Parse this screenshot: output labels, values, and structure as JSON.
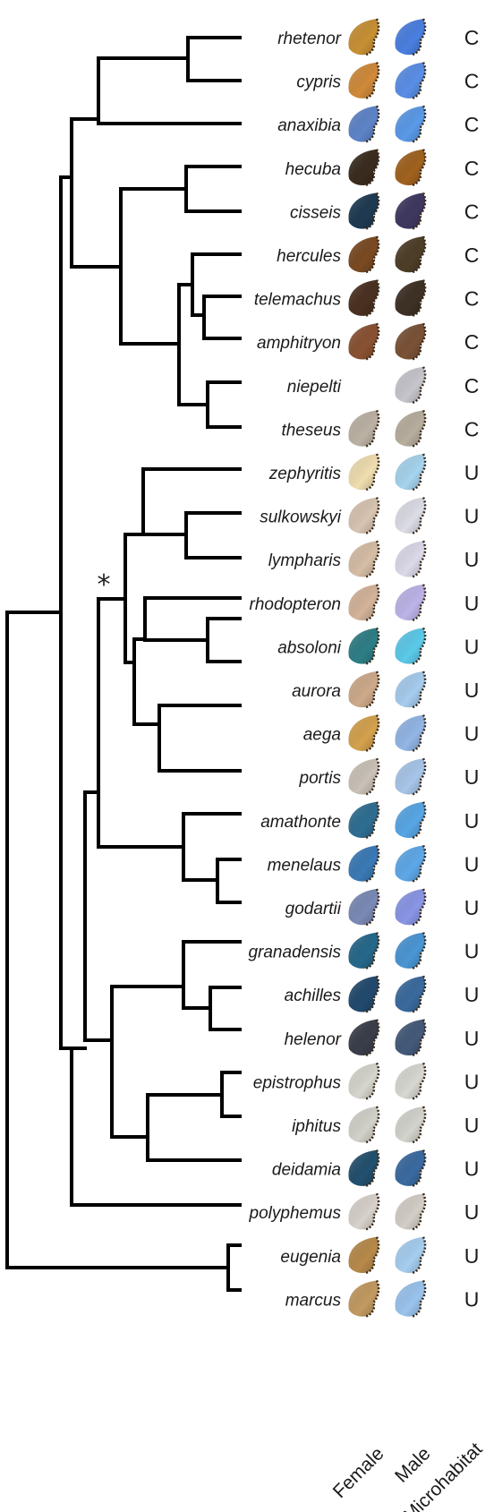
{
  "columns": {
    "female": "Female",
    "male": "Male",
    "microhabitat": "Microhabitat"
  },
  "node_marker": "*",
  "species": [
    {
      "name": "rhetenor",
      "habitat": "C",
      "female_color": "#c89034",
      "male_color": "#4a7fe0"
    },
    {
      "name": "cypris",
      "habitat": "C",
      "female_color": "#d08a3a",
      "male_color": "#5a8ee6"
    },
    {
      "name": "anaxibia",
      "habitat": "C",
      "female_color": "#5e84c8",
      "male_color": "#5a9ae8"
    },
    {
      "name": "hecuba",
      "habitat": "C",
      "female_color": "#3a2c1e",
      "male_color": "#a0621e"
    },
    {
      "name": "cisseis",
      "habitat": "C",
      "female_color": "#1e3a52",
      "male_color": "#3e3860"
    },
    {
      "name": "hercules",
      "habitat": "C",
      "female_color": "#7a4a22",
      "male_color": "#4e3e28"
    },
    {
      "name": "telemachus",
      "habitat": "C",
      "female_color": "#4a3020",
      "male_color": "#3e3024"
    },
    {
      "name": "amphitryon",
      "habitat": "C",
      "female_color": "#8a5232",
      "male_color": "#7a5236"
    },
    {
      "name": "niepelti",
      "habitat": "C",
      "female_color": null,
      "male_color": "#c6c6cc"
    },
    {
      "name": "theseus",
      "habitat": "C",
      "female_color": "#bcb2a4",
      "male_color": "#b8ae9e"
    },
    {
      "name": "zephyritis",
      "habitat": "U",
      "female_color": "#f0deb0",
      "male_color": "#a6d4ee"
    },
    {
      "name": "sulkowskyi",
      "habitat": "U",
      "female_color": "#d8c4b2",
      "male_color": "#dcdde6"
    },
    {
      "name": "lympharis",
      "habitat": "U",
      "female_color": "#d6bea6",
      "male_color": "#dcdaea"
    },
    {
      "name": "rhodopteron",
      "habitat": "U",
      "female_color": "#d4b49a",
      "male_color": "#bcb4e8"
    },
    {
      "name": "absoloni",
      "habitat": "U",
      "female_color": "#2e7e86",
      "male_color": "#5ccaea"
    },
    {
      "name": "aurora",
      "habitat": "U",
      "female_color": "#ceaa8a",
      "male_color": "#a6ccee"
    },
    {
      "name": "aega",
      "habitat": "U",
      "female_color": "#d4a24e",
      "male_color": "#92b6e6"
    },
    {
      "name": "portis",
      "habitat": "U",
      "female_color": "#cac2b8",
      "male_color": "#a8c6ea"
    },
    {
      "name": "amathonte",
      "habitat": "U",
      "female_color": "#2e6e92",
      "male_color": "#58a6e6"
    },
    {
      "name": "menelaus",
      "habitat": "U",
      "female_color": "#3a7ab6",
      "male_color": "#5ea8e8"
    },
    {
      "name": "godartii",
      "habitat": "U",
      "female_color": "#7a8ab6",
      "male_color": "#8a96e6"
    },
    {
      "name": "granadensis",
      "habitat": "U",
      "female_color": "#26688a",
      "male_color": "#4a96d4"
    },
    {
      "name": "achilles",
      "habitat": "U",
      "female_color": "#224a6e",
      "male_color": "#3a6a9e"
    },
    {
      "name": "helenor",
      "habitat": "U",
      "female_color": "#3a3e4a",
      "male_color": "#445a7a"
    },
    {
      "name": "epistrophus",
      "habitat": "U",
      "female_color": "#d6d6ce",
      "male_color": "#d8d8d2"
    },
    {
      "name": "iphitus",
      "habitat": "U",
      "female_color": "#d2d2ca",
      "male_color": "#d4d4ce"
    },
    {
      "name": "deidamia",
      "habitat": "U",
      "female_color": "#22506e",
      "male_color": "#3a6aa0"
    },
    {
      "name": "polyphemus",
      "habitat": "U",
      "female_color": "#d8d2cc",
      "male_color": "#d4cec8"
    },
    {
      "name": "eugenia",
      "habitat": "U",
      "female_color": "#b88a4a",
      "male_color": "#a6cef0"
    },
    {
      "name": "marcus",
      "habitat": "U",
      "female_color": "#c29a60",
      "male_color": "#9ac4ee"
    }
  ]
}
